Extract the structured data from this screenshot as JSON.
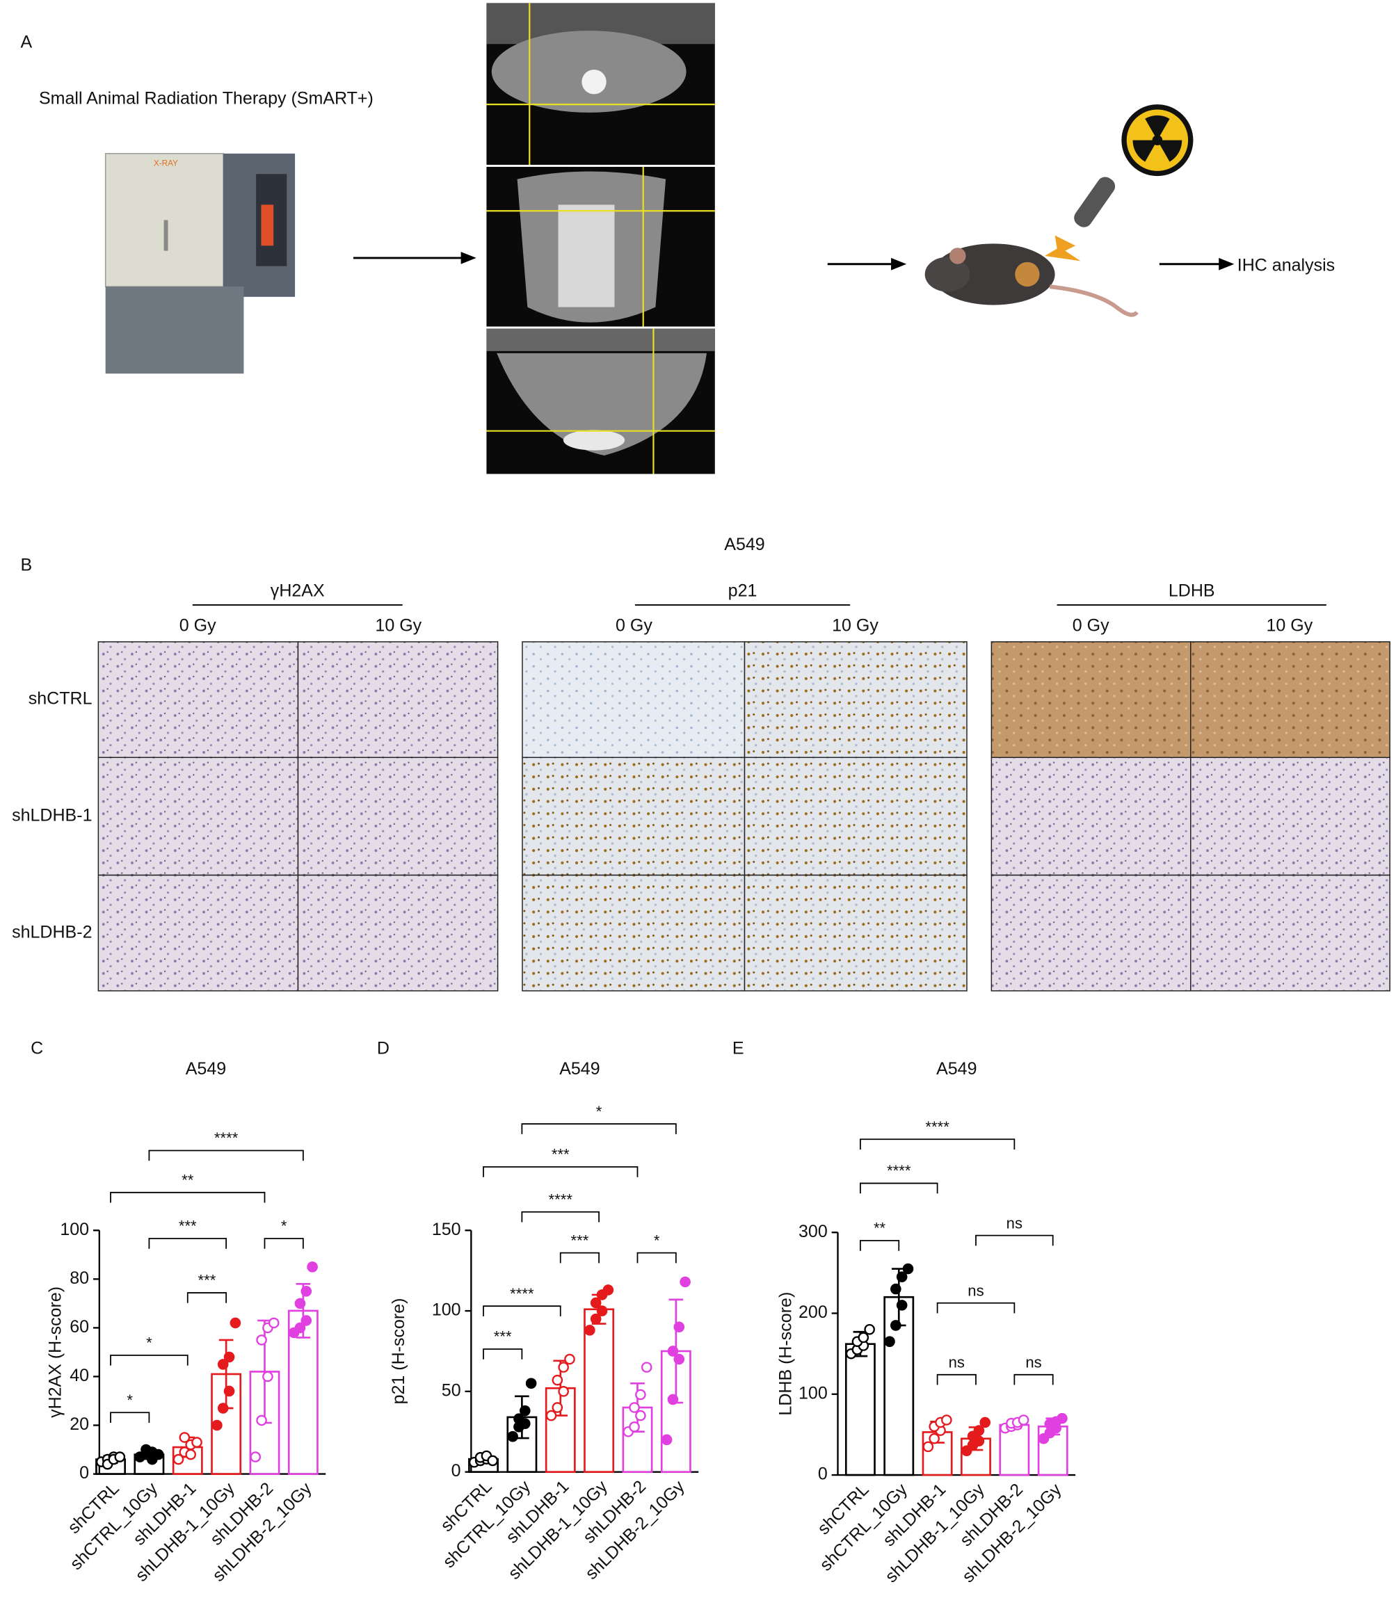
{
  "panel_a": {
    "letter": "A",
    "device": "Small Animal Radiation Therapy (SmART+)",
    "step": "IHC analysis"
  },
  "panel_b": {
    "letter": "B",
    "cell_line": "A549",
    "markers": [
      "γH2AX",
      "p21",
      "LDHB"
    ],
    "doses": [
      "0 Gy",
      "10 Gy"
    ],
    "groups": [
      "shCTRL",
      "shLDHB-1",
      "shLDHB-2"
    ]
  },
  "chart_data": [
    {
      "type": "bar",
      "panel": "C",
      "title": "A549",
      "y_label": "γH2AX (H-score)",
      "categories": [
        "shCTRL",
        "shCTRL_10Gy",
        "shLDHB-1",
        "shLDHB-1_10Gy",
        "shLDHB-2",
        "shLDHB-2_10Gy"
      ],
      "colors": [
        "#000000",
        "#000000",
        "#e41a1c",
        "#e41a1c",
        "#e040e0",
        "#e040e0"
      ],
      "filled": [
        false,
        true,
        false,
        true,
        false,
        true
      ],
      "values": [
        6,
        8,
        11,
        41,
        42,
        67
      ],
      "errors": [
        1.5,
        1.5,
        4,
        14,
        21,
        11
      ],
      "points": [
        [
          5,
          6,
          7,
          4,
          6,
          7
        ],
        [
          7,
          8,
          9,
          10,
          6,
          8
        ],
        [
          6,
          9,
          12,
          15,
          8,
          13
        ],
        [
          20,
          27,
          34,
          45,
          48,
          62
        ],
        [
          7,
          22,
          40,
          55,
          60,
          62
        ],
        [
          58,
          60,
          63,
          70,
          75,
          85
        ]
      ],
      "ylim": [
        0,
        100
      ],
      "yticks": [
        0,
        20,
        40,
        60,
        80,
        100
      ],
      "annotations": [
        {
          "from": 0,
          "to": 1,
          "label": "*"
        },
        {
          "from": 0,
          "to": 2,
          "label": "*"
        },
        {
          "from": 2,
          "to": 3,
          "label": "***"
        },
        {
          "from": 1,
          "to": 3,
          "label": "***"
        },
        {
          "from": 4,
          "to": 5,
          "label": "*"
        },
        {
          "from": 0,
          "to": 4,
          "label": "**"
        },
        {
          "from": 1,
          "to": 5,
          "label": "****"
        }
      ]
    },
    {
      "type": "bar",
      "panel": "D",
      "title": "A549",
      "y_label": "p21 (H-score)",
      "categories": [
        "shCTRL",
        "shCTRL_10Gy",
        "shLDHB-1",
        "shLDHB-1_10Gy",
        "shLDHB-2",
        "shLDHB-2_10Gy"
      ],
      "colors": [
        "#000000",
        "#000000",
        "#e41a1c",
        "#e41a1c",
        "#e040e0",
        "#e040e0"
      ],
      "filled": [
        false,
        true,
        false,
        true,
        false,
        true
      ],
      "values": [
        8,
        34,
        52,
        101,
        40,
        75
      ],
      "errors": [
        2,
        13,
        17,
        9,
        15,
        32
      ],
      "points": [
        [
          6,
          7,
          8,
          9,
          10,
          7
        ],
        [
          22,
          28,
          30,
          33,
          38,
          55
        ],
        [
          35,
          40,
          50,
          57,
          65,
          70
        ],
        [
          88,
          95,
          100,
          105,
          110,
          113
        ],
        [
          25,
          28,
          35,
          40,
          48,
          65
        ],
        [
          20,
          45,
          70,
          75,
          90,
          118
        ]
      ],
      "ylim": [
        0,
        150
      ],
      "yticks": [
        0,
        50,
        100,
        150
      ],
      "annotations": [
        {
          "from": 0,
          "to": 1,
          "label": "***"
        },
        {
          "from": 0,
          "to": 2,
          "label": "****"
        },
        {
          "from": 2,
          "to": 3,
          "label": "***"
        },
        {
          "from": 1,
          "to": 3,
          "label": "****"
        },
        {
          "from": 4,
          "to": 5,
          "label": "*"
        },
        {
          "from": 0,
          "to": 4,
          "label": "***"
        },
        {
          "from": 1,
          "to": 5,
          "label": "*"
        }
      ]
    },
    {
      "type": "bar",
      "panel": "E",
      "title": "A549",
      "y_label": "LDHB (H-score)",
      "categories": [
        "shCTRL",
        "shCTRL_10Gy",
        "shLDHB-1",
        "shLDHB-1_10Gy",
        "shLDHB-2",
        "shLDHB-2_10Gy"
      ],
      "colors": [
        "#000000",
        "#000000",
        "#e41a1c",
        "#e41a1c",
        "#e040e0",
        "#e040e0"
      ],
      "filled": [
        false,
        true,
        false,
        true,
        false,
        true
      ],
      "values": [
        162,
        220,
        53,
        45,
        62,
        60
      ],
      "errors": [
        15,
        35,
        13,
        14,
        4,
        10
      ],
      "points": [
        [
          150,
          155,
          160,
          165,
          170,
          180
        ],
        [
          165,
          185,
          210,
          230,
          245,
          255
        ],
        [
          35,
          45,
          55,
          60,
          65,
          68
        ],
        [
          30,
          37,
          42,
          48,
          55,
          65
        ],
        [
          58,
          60,
          62,
          64,
          65,
          68
        ],
        [
          45,
          52,
          58,
          63,
          66,
          70
        ]
      ],
      "ylim": [
        0,
        300
      ],
      "yticks": [
        0,
        100,
        200,
        300
      ],
      "annotations": [
        {
          "from": 0,
          "to": 1,
          "label": "**"
        },
        {
          "from": 0,
          "to": 2,
          "label": "****"
        },
        {
          "from": 0,
          "to": 4,
          "label": "****"
        },
        {
          "from": 2,
          "to": 3,
          "label": "ns"
        },
        {
          "from": 2,
          "to": 4,
          "label": "ns"
        },
        {
          "from": 4,
          "to": 5,
          "label": "ns"
        },
        {
          "from": 3,
          "to": 5,
          "label": "ns"
        }
      ]
    }
  ]
}
